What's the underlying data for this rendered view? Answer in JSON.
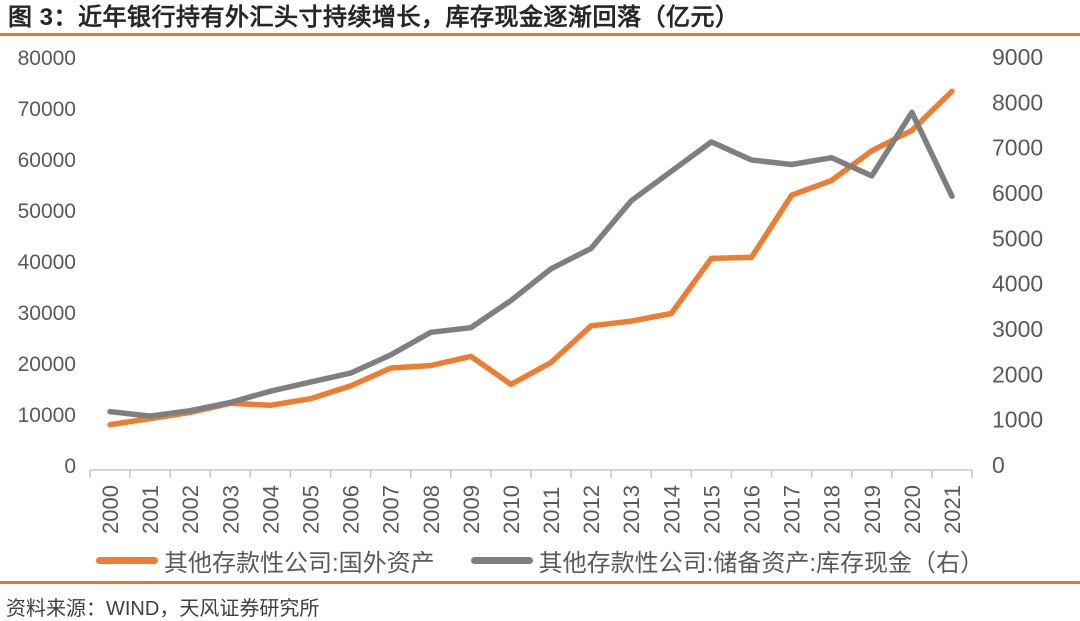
{
  "title": "图 3：近年银行持有外汇头寸持续增长，库存现金逐渐回落（亿元）",
  "source": "资料来源：WIND，天风证券研究所",
  "colors": {
    "accent_orange": "#ED7D31",
    "series_gray": "#7F7F7F",
    "rule_orange": "#E87722",
    "axis_text": "#595959",
    "axis_line": "#C6C6C6",
    "title_text": "#262626",
    "source_text": "#404040"
  },
  "chart_data": {
    "type": "line",
    "title": "图 3：近年银行持有外汇头寸持续增长，库存现金逐渐回落（亿元）",
    "categories": [
      "2000",
      "2001",
      "2002",
      "2003",
      "2004",
      "2005",
      "2006",
      "2007",
      "2008",
      "2009",
      "2010",
      "2011",
      "2012",
      "2013",
      "2014",
      "2015",
      "2016",
      "2017",
      "2018",
      "2019",
      "2020",
      "2021"
    ],
    "series": [
      {
        "name": "其他存款性公司:国外资产",
        "axis": "left",
        "color": "#ED7D31",
        "values": [
          8100,
          9300,
          10500,
          12300,
          11900,
          13200,
          15700,
          19200,
          19700,
          21500,
          16000,
          20300,
          27500,
          28400,
          29900,
          40700,
          40900,
          53100,
          56000,
          61800,
          65800,
          73500
        ]
      },
      {
        "name": "其他存款性公司:储备资产:库存现金（右）",
        "axis": "right",
        "color": "#7F7F7F",
        "values": [
          1200,
          1100,
          1220,
          1400,
          1650,
          1850,
          2050,
          2450,
          2950,
          3050,
          3650,
          4350,
          4800,
          5850,
          6500,
          7150,
          6750,
          6650,
          6800,
          6400,
          7800,
          5950
        ]
      }
    ],
    "left_axis": {
      "min": 0,
      "max": 80000,
      "tick_step": 10000,
      "ticks": [
        "0",
        "10000",
        "20000",
        "30000",
        "40000",
        "50000",
        "60000",
        "70000",
        "80000"
      ]
    },
    "right_axis": {
      "min": 0,
      "max": 9000,
      "tick_step": 1000,
      "ticks": [
        "0",
        "1000",
        "2000",
        "3000",
        "4000",
        "5000",
        "6000",
        "7000",
        "8000",
        "9000"
      ]
    },
    "grid": false,
    "legend_position": "bottom"
  }
}
